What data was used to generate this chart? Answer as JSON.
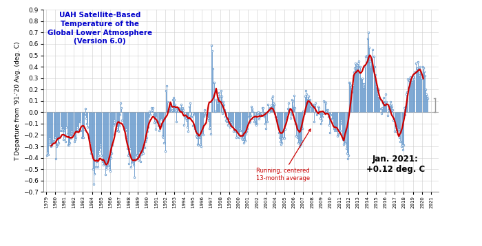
{
  "title": "UAH Satellite-Based\nTemperature of the\nGlobal Lower Atmosphere\n(Version 6.0)",
  "ylabel": "T Departure from '91-'20 Avg. (deg. C)",
  "ylim": [
    -0.7,
    0.9
  ],
  "yticks": [
    -0.7,
    -0.6,
    -0.5,
    -0.4,
    -0.3,
    -0.2,
    -0.1,
    0.0,
    0.1,
    0.2,
    0.3,
    0.4,
    0.5,
    0.6,
    0.7,
    0.8,
    0.9
  ],
  "annotation_label": "Running, centered\n13-month average",
  "jan2021_label": "Jan. 2021:\n+0.12 deg. C",
  "monthly_values": [
    -0.38,
    -0.35,
    -0.37,
    -0.28,
    -0.23,
    -0.28,
    -0.3,
    -0.29,
    -0.27,
    -0.25,
    -0.22,
    -0.22,
    -0.41,
    -0.3,
    -0.23,
    -0.28,
    -0.27,
    -0.22,
    -0.16,
    -0.13,
    -0.16,
    -0.15,
    -0.24,
    -0.16,
    -0.21,
    -0.26,
    -0.13,
    -0.19,
    -0.29,
    -0.29,
    -0.27,
    -0.21,
    -0.23,
    -0.17,
    -0.2,
    -0.19,
    -0.26,
    -0.24,
    -0.22,
    -0.17,
    -0.13,
    -0.16,
    -0.14,
    -0.08,
    -0.08,
    -0.16,
    -0.22,
    -0.22,
    -0.22,
    -0.15,
    -0.02,
    0.03,
    -0.05,
    -0.1,
    -0.13,
    -0.22,
    -0.24,
    -0.27,
    -0.36,
    -0.35,
    -0.35,
    -0.5,
    -0.63,
    -0.54,
    -0.48,
    -0.42,
    -0.43,
    -0.48,
    -0.38,
    -0.34,
    -0.31,
    -0.28,
    -0.38,
    -0.43,
    -0.46,
    -0.43,
    -0.45,
    -0.55,
    -0.5,
    -0.48,
    -0.41,
    -0.47,
    -0.5,
    -0.52,
    -0.4,
    -0.36,
    -0.29,
    -0.2,
    -0.11,
    -0.07,
    -0.1,
    -0.16,
    -0.13,
    -0.16,
    -0.17,
    -0.12,
    -0.02,
    0.08,
    0.04,
    -0.07,
    -0.11,
    -0.15,
    -0.15,
    -0.16,
    -0.15,
    -0.22,
    -0.32,
    -0.38,
    -0.45,
    -0.32,
    -0.48,
    -0.4,
    -0.44,
    -0.43,
    -0.46,
    -0.57,
    -0.42,
    -0.37,
    -0.38,
    -0.39,
    -0.42,
    -0.35,
    -0.39,
    -0.43,
    -0.37,
    -0.35,
    -0.33,
    -0.36,
    -0.31,
    -0.26,
    -0.24,
    -0.22,
    -0.17,
    -0.13,
    -0.04,
    0.01,
    -0.02,
    0.04,
    0.02,
    0.04,
    -0.02,
    -0.09,
    -0.06,
    -0.15,
    -0.04,
    -0.08,
    -0.12,
    -0.16,
    -0.1,
    -0.06,
    -0.06,
    -0.12,
    -0.21,
    -0.22,
    -0.27,
    -0.34,
    0.19,
    0.23,
    0.09,
    0.0,
    0.02,
    0.04,
    0.08,
    0.06,
    0.02,
    0.11,
    0.13,
    0.11,
    0.07,
    0.01,
    -0.08,
    0.03,
    0.03,
    0.04,
    0.01,
    0.03,
    0.07,
    0.03,
    0.04,
    0.02,
    -0.11,
    -0.04,
    -0.05,
    -0.07,
    -0.13,
    -0.17,
    -0.05,
    0.05,
    0.08,
    -0.03,
    -0.04,
    -0.12,
    -0.01,
    -0.02,
    -0.14,
    -0.16,
    -0.21,
    -0.22,
    -0.28,
    -0.29,
    -0.22,
    -0.28,
    -0.3,
    -0.18,
    -0.16,
    -0.2,
    -0.04,
    0.02,
    -0.02,
    -0.03,
    -0.01,
    -0.05,
    -0.07,
    -0.14,
    -0.13,
    -0.19,
    0.59,
    0.54,
    0.38,
    0.26,
    0.01,
    0.01,
    0.11,
    0.09,
    0.08,
    0.14,
    0.17,
    0.14,
    0.19,
    0.14,
    -0.01,
    0.09,
    0.07,
    0.02,
    -0.04,
    -0.07,
    -0.08,
    -0.11,
    -0.08,
    -0.07,
    -0.13,
    -0.11,
    -0.09,
    -0.1,
    -0.12,
    -0.17,
    -0.14,
    -0.17,
    -0.22,
    -0.17,
    -0.16,
    -0.21,
    -0.22,
    -0.14,
    -0.16,
    -0.23,
    -0.24,
    -0.22,
    -0.27,
    -0.24,
    -0.25,
    -0.19,
    -0.17,
    -0.14,
    -0.04,
    -0.09,
    -0.08,
    -0.03,
    0.05,
    0.03,
    0.01,
    -0.05,
    -0.08,
    -0.1,
    -0.11,
    -0.1,
    -0.01,
    0.0,
    -0.06,
    -0.04,
    -0.02,
    -0.01,
    0.04,
    0.04,
    -0.01,
    -0.04,
    -0.1,
    -0.14,
    -0.01,
    -0.08,
    0.07,
    0.0,
    0.04,
    0.04,
    0.06,
    0.12,
    0.14,
    0.08,
    0.07,
    -0.01,
    -0.04,
    -0.05,
    -0.1,
    -0.12,
    -0.18,
    -0.22,
    -0.26,
    -0.28,
    -0.27,
    -0.23,
    -0.23,
    -0.23,
    -0.15,
    -0.06,
    -0.05,
    -0.02,
    0.03,
    0.08,
    0.03,
    -0.05,
    -0.02,
    0.11,
    0.1,
    0.05,
    0.15,
    0.04,
    -0.1,
    -0.21,
    -0.22,
    -0.27,
    -0.26,
    -0.3,
    -0.28,
    -0.28,
    -0.25,
    -0.14,
    0.01,
    -0.01,
    0.14,
    0.19,
    0.16,
    0.12,
    0.11,
    0.14,
    0.09,
    0.11,
    0.05,
    0.07,
    0.07,
    0.05,
    -0.08,
    0.06,
    0.08,
    0.0,
    -0.02,
    0.05,
    0.04,
    -0.01,
    -0.05,
    -0.1,
    -0.07,
    -0.04,
    -0.01,
    0.1,
    0.09,
    0.08,
    0.01,
    0.02,
    0.02,
    -0.04,
    -0.11,
    -0.18,
    -0.02,
    -0.06,
    -0.06,
    -0.1,
    -0.14,
    -0.16,
    -0.14,
    -0.14,
    -0.16,
    -0.21,
    -0.19,
    -0.17,
    -0.16,
    -0.07,
    -0.1,
    -0.21,
    -0.24,
    -0.28,
    -0.27,
    -0.27,
    -0.32,
    -0.36,
    -0.41,
    -0.38,
    0.26,
    0.26,
    0.24,
    0.21,
    0.18,
    0.24,
    0.35,
    0.39,
    0.43,
    0.42,
    0.37,
    0.41,
    0.43,
    0.45,
    0.4,
    0.29,
    0.29,
    0.3,
    0.25,
    0.22,
    0.25,
    0.4,
    0.49,
    0.5,
    0.65,
    0.7,
    0.57,
    0.45,
    0.4,
    0.47,
    0.44,
    0.55,
    0.49,
    0.4,
    0.33,
    0.23,
    0.22,
    0.17,
    0.14,
    0.2,
    0.11,
    0.03,
    -0.01,
    0.04,
    0.08,
    0.13,
    0.08,
    0.09,
    0.16,
    0.09,
    -0.03,
    0.02,
    0.03,
    0.06,
    0.09,
    0.07,
    0.05,
    0.02,
    -0.07,
    -0.17,
    -0.13,
    -0.17,
    -0.13,
    -0.16,
    -0.14,
    -0.15,
    -0.22,
    -0.26,
    -0.3,
    -0.29,
    -0.33,
    -0.29,
    0.04,
    -0.02,
    0.05,
    0.16,
    0.18,
    0.29,
    0.28,
    0.3,
    0.31,
    0.27,
    0.27,
    0.28,
    0.31,
    0.29,
    0.35,
    0.43,
    0.37,
    0.39,
    0.44,
    0.38,
    0.33,
    0.4,
    0.35,
    0.3,
    0.4,
    0.39,
    0.36,
    0.32,
    0.2,
    0.16,
    0.14,
    0.12
  ],
  "start_year": 1979,
  "start_month": 1,
  "bar_color": "#6699cc",
  "line_color": "#cc0000",
  "marker_color": "#6699cc",
  "zero_line_color": "#888888",
  "background_color": "#ffffff",
  "grid_color": "#cccccc",
  "title_color": "#0000cc",
  "annotation_color": "#cc0000",
  "jan2021_value": 0.12,
  "bracket_color": "#999999"
}
